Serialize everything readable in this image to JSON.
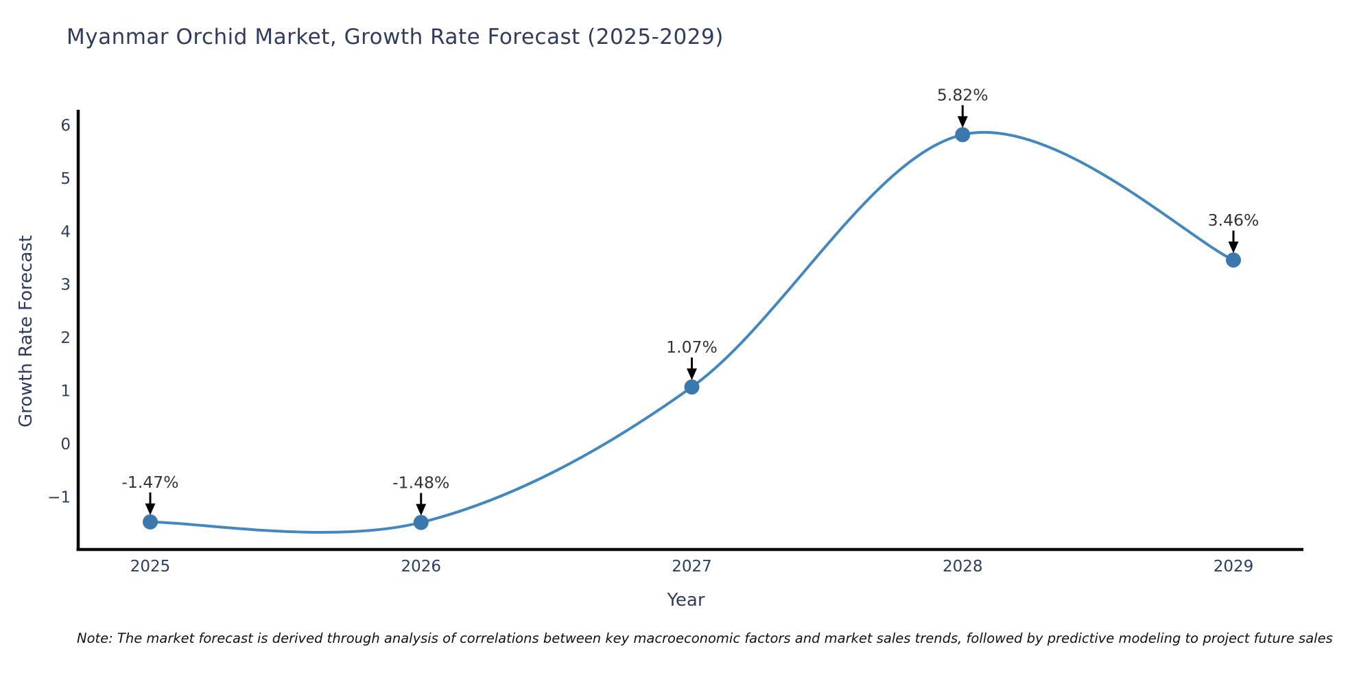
{
  "title": "Myanmar Orchid Market, Growth Rate Forecast (2025-2029)",
  "axes": {
    "x_label": "Year",
    "y_label": "Growth Rate Forecast",
    "y_ticks": [
      "6",
      "5",
      "4",
      "3",
      "2",
      "1",
      "0",
      "−1"
    ],
    "x_ticks": [
      "2025",
      "2026",
      "2027",
      "2028",
      "2029"
    ]
  },
  "note": "Note: The market forecast is derived through analysis of correlations between key macroeconomic factors and market sales trends, followed by predictive modeling to project future sales",
  "chart_data": {
    "type": "line",
    "title": "Myanmar Orchid Market, Growth Rate Forecast (2025-2029)",
    "xlabel": "Year",
    "ylabel": "Growth Rate Forecast",
    "x": [
      2025,
      2026,
      2027,
      2028,
      2029
    ],
    "values": [
      -1.47,
      -1.48,
      1.07,
      5.82,
      3.46
    ],
    "point_labels": [
      "-1.47%",
      "-1.48%",
      "1.07%",
      "5.82%",
      "3.46%"
    ],
    "y_tick_values": [
      6,
      5,
      4,
      3,
      2,
      1,
      0,
      -1
    ],
    "ylim": [
      -2.0,
      6.3
    ],
    "xlim": [
      2024.73,
      2029.26
    ],
    "grid": false,
    "legend": "none",
    "smooth": true,
    "colors": {
      "line": "#4287bf",
      "marker": "#3a78ae",
      "annotation_text": "#333333",
      "arrow": "#000000",
      "spine": "#0a0a0a",
      "tick_label": "#2a3f5f",
      "title": "#2f3c5f",
      "note": "#111111"
    }
  }
}
